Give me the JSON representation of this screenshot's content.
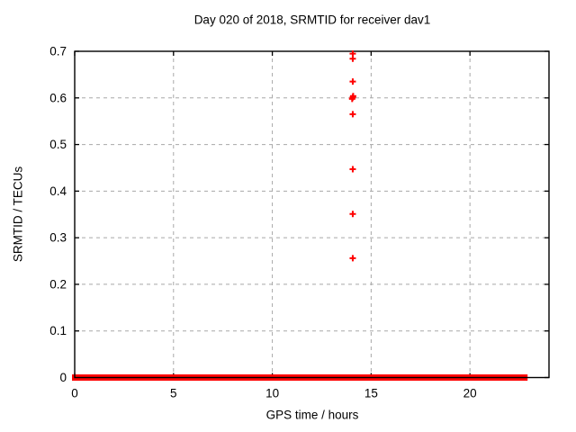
{
  "chart_data": {
    "type": "scatter",
    "title": "Day 020 of 2018, SRMTID for receiver dav1",
    "xlabel": "GPS time / hours",
    "ylabel": "SRMTID / TECUs",
    "xlim": [
      0,
      24
    ],
    "ylim": [
      0,
      0.7
    ],
    "xticks": [
      {
        "value": 0,
        "label": "0"
      },
      {
        "value": 5,
        "label": "5"
      },
      {
        "value": 10,
        "label": "10"
      },
      {
        "value": 15,
        "label": "15"
      },
      {
        "value": 20,
        "label": "20"
      }
    ],
    "yticks": [
      {
        "value": 0.0,
        "label": "0"
      },
      {
        "value": 0.1,
        "label": "0.1"
      },
      {
        "value": 0.2,
        "label": "0.2"
      },
      {
        "value": 0.3,
        "label": "0.3"
      },
      {
        "value": 0.4,
        "label": "0.4"
      },
      {
        "value": 0.5,
        "label": "0.5"
      },
      {
        "value": 0.6,
        "label": "0.6"
      },
      {
        "value": 0.7,
        "label": "0.7"
      }
    ],
    "grid": true,
    "legend": "none",
    "marker": "plus",
    "colors": {
      "marker": "#ff0000",
      "grid": "#a8a8a8",
      "axis": "#000000",
      "text": "#000000",
      "background": "#ffffff"
    },
    "series": [
      {
        "name": "SRMTID",
        "baseline": {
          "y": 0,
          "segments": [
            [
              0.0,
              5.85
            ],
            [
              5.98,
              13.95
            ],
            [
              14.17,
              21.3
            ],
            [
              21.42,
              21.58
            ],
            [
              21.72,
              22.78
            ]
          ]
        },
        "points": [
          [
            14.07,
            0.695
          ],
          [
            14.07,
            0.684
          ],
          [
            14.07,
            0.635
          ],
          [
            14.04,
            0.598
          ],
          [
            14.09,
            0.604
          ],
          [
            14.07,
            0.601
          ],
          [
            14.07,
            0.565
          ],
          [
            14.07,
            0.447
          ],
          [
            14.07,
            0.351
          ],
          [
            14.07,
            0.256
          ]
        ]
      }
    ]
  }
}
